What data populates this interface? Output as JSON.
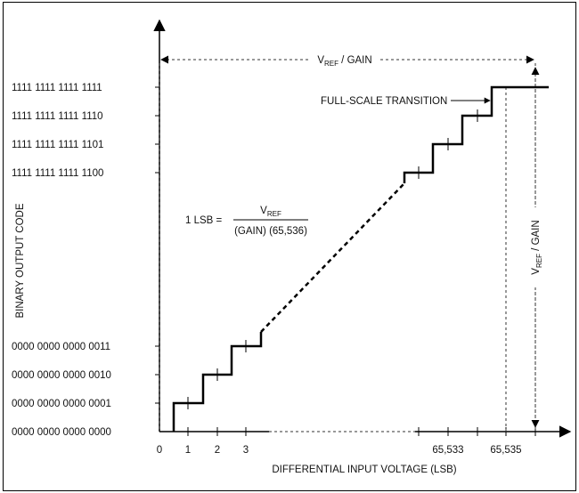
{
  "y_axis_label": "BINARY OUTPUT CODE",
  "x_axis_label": "DIFFERENTIAL INPUT VOLTAGE (LSB)",
  "y_codes_top": [
    "1111 1111 1111 1111",
    "1111 1111 1111 1110",
    "1111 1111 1111 1101",
    "1111 1111 1111 1100"
  ],
  "y_codes_bottom": [
    "0000 0000 0000 0011",
    "0000 0000 0000 0010",
    "0000 0000 0000 0001",
    "0000 0000 0000 0000"
  ],
  "x_ticks_low": [
    "0",
    "1",
    "2",
    "3"
  ],
  "x_ticks_high": [
    "65,533",
    "65,535"
  ],
  "span_label": {
    "prefix": "V",
    "sub": "REF",
    "suffix": " / GAIN"
  },
  "full_scale_label": "FULL-SCALE TRANSITION",
  "lsb_formula": {
    "lhs": "1 LSB =",
    "num_prefix": "V",
    "num_sub": "REF",
    "denominator": "(GAIN) (65,536)"
  }
}
